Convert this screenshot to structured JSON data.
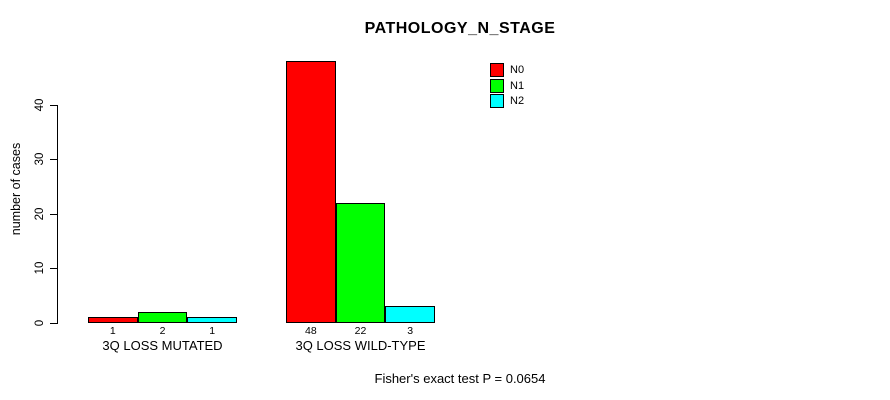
{
  "chart_data": {
    "type": "bar",
    "title": "PATHOLOGY_N_STAGE",
    "ylabel": "number of cases",
    "xlabel": "",
    "categories": [
      "3Q LOSS MUTATED",
      "3Q LOSS WILD-TYPE"
    ],
    "series": [
      {
        "name": "N0",
        "color": "#ff0000",
        "values": [
          1,
          48
        ]
      },
      {
        "name": "N1",
        "color": "#00ff00",
        "values": [
          2,
          22
        ]
      },
      {
        "name": "N2",
        "color": "#00ffff",
        "values": [
          1,
          3
        ]
      }
    ],
    "yticks": [
      0,
      10,
      20,
      30,
      40
    ],
    "ylim": [
      0,
      48.5
    ],
    "grid": false,
    "legend_position": "top-right",
    "bar_border_color": "#000000",
    "show_value_labels": true
  },
  "footer": "Fisher's exact test P = 0.0654"
}
